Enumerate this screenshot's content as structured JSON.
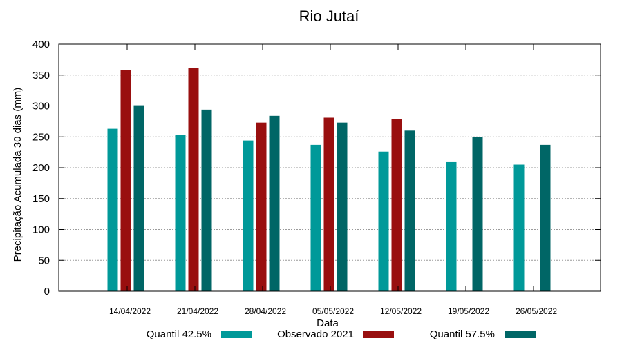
{
  "chart_data": {
    "type": "bar",
    "title": "Rio Jutaí",
    "xlabel": "Data",
    "ylabel": "Precipitação Acumulada 30 dias (mm)",
    "categories": [
      "14/04/2022",
      "21/04/2022",
      "28/04/2022",
      "05/05/2022",
      "12/05/2022",
      "19/05/2022",
      "26/05/2022"
    ],
    "series": [
      {
        "name": "Quantil 42.5%",
        "color": "#009999",
        "values": [
          263,
          253,
          244,
          237,
          226,
          209,
          205
        ]
      },
      {
        "name": "Observado 2021",
        "color": "#990f0f",
        "values": [
          358,
          361,
          273,
          281,
          279,
          null,
          null
        ]
      },
      {
        "name": "Quantil 57.5%",
        "color": "#006666",
        "values": [
          301,
          294,
          284,
          273,
          260,
          250,
          237
        ]
      }
    ],
    "ylim": [
      0,
      400
    ],
    "yticks": [
      0,
      50,
      100,
      150,
      200,
      250,
      300,
      350,
      400
    ],
    "grid": true,
    "legend_position": "bottom"
  }
}
